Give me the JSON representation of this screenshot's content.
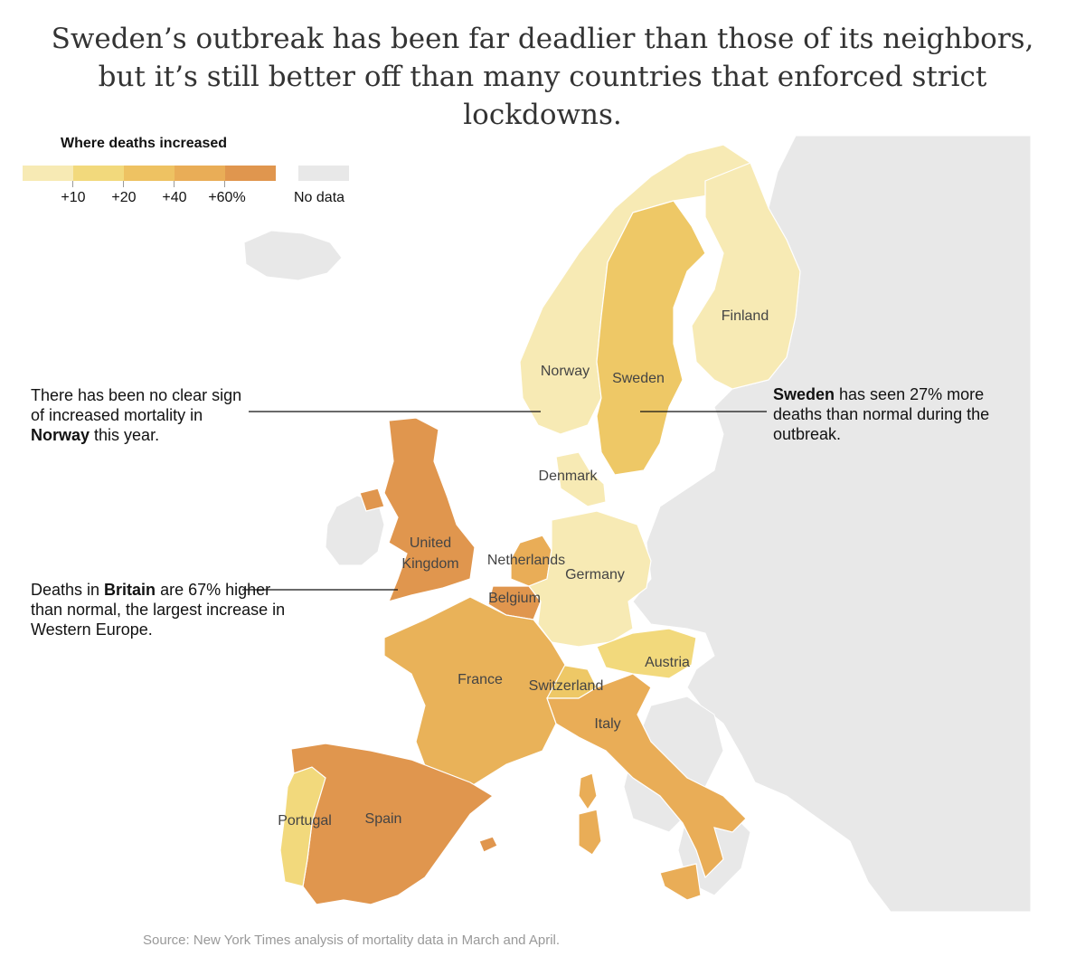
{
  "headline": "Sweden’s outbreak has been far deadlier than those of its neighbors, but it’s still better off than many countries that enforced strict lockdowns.",
  "legend": {
    "title": "Where deaths increased",
    "bins": [
      {
        "label": "",
        "color": "#f7eab4"
      },
      {
        "label": "+10",
        "color": "#f2d97c"
      },
      {
        "label": "+20",
        "color": "#eec262"
      },
      {
        "label": "+40",
        "color": "#e9ad57"
      },
      {
        "label": "+60%",
        "color": "#e0964e"
      }
    ],
    "nodata": {
      "label": "No data",
      "color": "#e8e8e8"
    }
  },
  "countries": [
    {
      "name": "Norway",
      "label": "Norway",
      "color": "#f7eab4"
    },
    {
      "name": "Sweden",
      "label": "Sweden",
      "color": "#eec866"
    },
    {
      "name": "Finland",
      "label": "Finland",
      "color": "#f7eab4"
    },
    {
      "name": "Denmark",
      "label": "Denmark",
      "color": "#f7eab4"
    },
    {
      "name": "United Kingdom",
      "label_lines": [
        "United",
        "Kingdom"
      ],
      "color": "#e0964e"
    },
    {
      "name": "Ireland",
      "label": "",
      "color": "#e8e8e8"
    },
    {
      "name": "Netherlands",
      "label": "Netherlands",
      "color": "#e9ad57"
    },
    {
      "name": "Belgium",
      "label": "Belgium",
      "color": "#e0964e"
    },
    {
      "name": "Germany",
      "label": "Germany",
      "color": "#f7eab4"
    },
    {
      "name": "Austria",
      "label": "Austria",
      "color": "#f2d97c"
    },
    {
      "name": "Switzerland",
      "label": "Switzerland",
      "color": "#eec866"
    },
    {
      "name": "France",
      "label": "France",
      "color": "#e9b259"
    },
    {
      "name": "Italy",
      "label": "Italy",
      "color": "#e9ad57"
    },
    {
      "name": "Spain",
      "label": "Spain",
      "color": "#e0964e"
    },
    {
      "name": "Portugal",
      "label": "Portugal",
      "color": "#f2d97c"
    }
  ],
  "annotations": {
    "norway": {
      "prefix": "There has been no clear sign of increased mortality in ",
      "bold": "Norway",
      "suffix": " this year."
    },
    "sweden": {
      "prefix": "",
      "bold": "Sweden",
      "suffix": " has seen 27% more deaths than normal during the outbreak."
    },
    "britain": {
      "prefix": "Deaths in ",
      "bold": "Britain",
      "suffix": " are 67% higher than normal, the largest increase in Western Europe."
    }
  },
  "source": "Source: New York Times analysis of mortality data in March and April."
}
